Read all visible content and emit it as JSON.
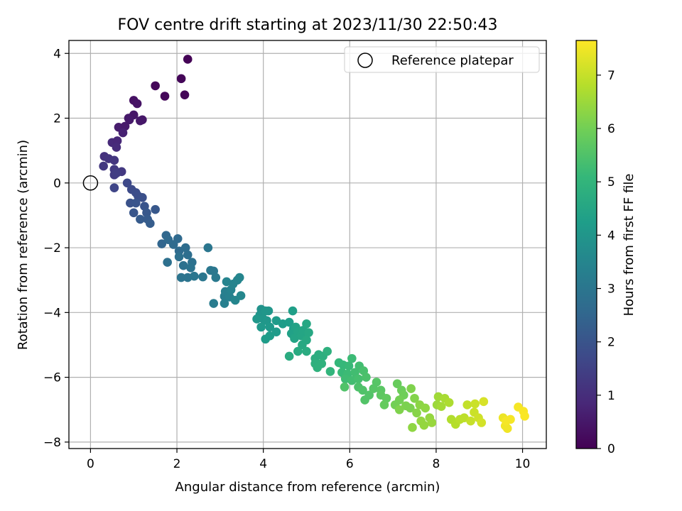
{
  "chart_data": {
    "type": "scatter",
    "title": "FOV centre drift starting at 2023/11/30 22:50:43",
    "xlabel": "Angular distance from reference (arcmin)",
    "ylabel": "Rotation from reference (arcmin)",
    "xlim": [
      -0.5,
      10.55
    ],
    "ylim": [
      -8.2,
      4.4
    ],
    "xticks": [
      0,
      2,
      4,
      6,
      8,
      10
    ],
    "yticks": [
      -8,
      -6,
      -4,
      -2,
      0,
      2,
      4
    ],
    "xtick_labels": [
      "0",
      "2",
      "4",
      "6",
      "8",
      "10"
    ],
    "ytick_labels": [
      "−8",
      "−6",
      "−4",
      "−2",
      "0",
      "2",
      "4"
    ],
    "grid": true,
    "legend": {
      "position": "top-right",
      "entries": [
        "Reference platepar"
      ]
    },
    "reference_point": {
      "label": "Reference platepar",
      "x": 0,
      "y": 0,
      "marker": "open-circle"
    },
    "colorbar": {
      "label": "Hours from first FF file",
      "min": 0,
      "max": 7.65,
      "ticks": [
        0,
        1,
        2,
        3,
        4,
        5,
        6,
        7
      ],
      "tick_labels": [
        "0",
        "1",
        "2",
        "3",
        "4",
        "5",
        "6",
        "7"
      ],
      "colormap": "viridis"
    },
    "colormap_stops": [
      "#440154",
      "#482878",
      "#3e4989",
      "#31688e",
      "#26828e",
      "#1f9e89",
      "#35b779",
      "#6ece58",
      "#b5de2b",
      "#fde725"
    ],
    "series": [
      {
        "name": "FOV centre drift",
        "points": [
          [
            2.25,
            3.82,
            0.05
          ],
          [
            2.1,
            3.22,
            0.1
          ],
          [
            1.5,
            3.0,
            0.12
          ],
          [
            1.72,
            2.68,
            0.15
          ],
          [
            2.18,
            2.72,
            0.1
          ],
          [
            1.0,
            2.55,
            0.35
          ],
          [
            1.08,
            2.45,
            0.4
          ],
          [
            0.88,
            2.0,
            0.5
          ],
          [
            1.0,
            2.1,
            0.45
          ],
          [
            1.2,
            1.95,
            0.48
          ],
          [
            0.65,
            1.72,
            0.6
          ],
          [
            0.8,
            1.75,
            0.55
          ],
          [
            0.9,
            1.95,
            0.52
          ],
          [
            1.15,
            1.92,
            0.5
          ],
          [
            0.75,
            1.55,
            0.7
          ],
          [
            0.5,
            1.25,
            0.9
          ],
          [
            0.62,
            1.3,
            0.85
          ],
          [
            0.6,
            1.1,
            0.95
          ],
          [
            0.32,
            0.82,
            1.1
          ],
          [
            0.42,
            0.75,
            1.15
          ],
          [
            0.55,
            0.7,
            1.2
          ],
          [
            0.3,
            0.52,
            1.25
          ],
          [
            0.55,
            0.42,
            1.3
          ],
          [
            0.55,
            0.25,
            1.35
          ],
          [
            0.72,
            0.35,
            1.3
          ],
          [
            0.6,
            0.3,
            1.4
          ],
          [
            0.55,
            -0.15,
            1.6
          ],
          [
            0.85,
            0.0,
            1.7
          ],
          [
            0.95,
            -0.2,
            1.75
          ],
          [
            1.05,
            -0.3,
            1.8
          ],
          [
            1.1,
            -0.4,
            1.85
          ],
          [
            1.2,
            -0.45,
            1.9
          ],
          [
            0.92,
            -0.62,
            1.95
          ],
          [
            1.05,
            -0.62,
            2.0
          ],
          [
            1.25,
            -0.72,
            2.0
          ],
          [
            1.0,
            -0.92,
            2.05
          ],
          [
            1.3,
            -0.92,
            2.1
          ],
          [
            1.5,
            -0.82,
            2.1
          ],
          [
            1.15,
            -1.12,
            2.2
          ],
          [
            1.32,
            -1.12,
            2.2
          ],
          [
            1.38,
            -1.25,
            2.25
          ],
          [
            1.65,
            -1.88,
            2.5
          ],
          [
            1.75,
            -1.62,
            2.55
          ],
          [
            1.8,
            -1.75,
            2.6
          ],
          [
            2.02,
            -1.72,
            2.6
          ],
          [
            1.92,
            -1.9,
            2.65
          ],
          [
            2.05,
            -2.1,
            2.65
          ],
          [
            2.2,
            -2.0,
            2.7
          ],
          [
            2.25,
            -2.22,
            2.75
          ],
          [
            2.05,
            -2.28,
            2.8
          ],
          [
            1.78,
            -2.45,
            2.8
          ],
          [
            2.15,
            -2.55,
            2.85
          ],
          [
            2.35,
            -2.45,
            2.85
          ],
          [
            2.32,
            -2.62,
            2.9
          ],
          [
            2.1,
            -2.92,
            2.95
          ],
          [
            2.25,
            -2.92,
            2.95
          ],
          [
            2.4,
            -2.88,
            3.0
          ],
          [
            2.6,
            -2.9,
            3.0
          ],
          [
            2.72,
            -2.0,
            3.0
          ],
          [
            2.78,
            -2.7,
            3.05
          ],
          [
            2.85,
            -2.72,
            3.05
          ],
          [
            2.9,
            -2.92,
            3.1
          ],
          [
            2.85,
            -3.72,
            3.2
          ],
          [
            3.1,
            -3.5,
            3.25
          ],
          [
            3.12,
            -3.35,
            3.3
          ],
          [
            3.1,
            -3.72,
            3.3
          ],
          [
            3.22,
            -3.52,
            3.35
          ],
          [
            3.25,
            -3.3,
            3.4
          ],
          [
            3.3,
            -3.12,
            3.45
          ],
          [
            3.4,
            -3.0,
            3.45
          ],
          [
            3.45,
            -2.92,
            3.5
          ],
          [
            3.35,
            -3.62,
            3.5
          ],
          [
            3.48,
            -3.48,
            3.55
          ],
          [
            3.15,
            -3.05,
            3.45
          ],
          [
            3.95,
            -3.9,
            3.9
          ],
          [
            3.92,
            -4.08,
            3.95
          ],
          [
            4.05,
            -3.95,
            4.0
          ],
          [
            4.12,
            -3.95,
            4.0
          ],
          [
            4.0,
            -4.2,
            4.0
          ],
          [
            3.85,
            -4.2,
            4.05
          ],
          [
            4.08,
            -4.25,
            4.05
          ],
          [
            3.95,
            -4.45,
            4.1
          ],
          [
            4.15,
            -4.45,
            4.1
          ],
          [
            4.3,
            -4.6,
            4.15
          ],
          [
            4.05,
            -4.82,
            4.2
          ],
          [
            4.15,
            -4.72,
            4.2
          ],
          [
            4.3,
            -4.25,
            4.15
          ],
          [
            4.45,
            -4.35,
            4.2
          ],
          [
            4.6,
            -4.3,
            4.25
          ],
          [
            4.68,
            -3.95,
            4.3
          ],
          [
            4.7,
            -4.5,
            4.3
          ],
          [
            4.65,
            -4.65,
            4.35
          ],
          [
            4.75,
            -4.45,
            4.4
          ],
          [
            4.8,
            -4.6,
            4.45
          ],
          [
            4.72,
            -4.8,
            4.45
          ],
          [
            4.88,
            -4.72,
            4.5
          ],
          [
            4.92,
            -4.55,
            4.5
          ],
          [
            5.0,
            -4.35,
            4.55
          ],
          [
            5.05,
            -4.62,
            4.55
          ],
          [
            5.0,
            -4.85,
            4.6
          ],
          [
            4.9,
            -5.0,
            4.6
          ],
          [
            4.8,
            -5.2,
            4.65
          ],
          [
            4.6,
            -5.35,
            4.7
          ],
          [
            5.0,
            -5.2,
            4.7
          ],
          [
            5.2,
            -5.42,
            4.75
          ],
          [
            5.28,
            -5.3,
            4.75
          ],
          [
            5.38,
            -5.35,
            4.8
          ],
          [
            5.48,
            -5.2,
            4.85
          ],
          [
            5.2,
            -5.58,
            4.85
          ],
          [
            5.35,
            -5.58,
            4.9
          ],
          [
            5.25,
            -5.7,
            4.9
          ],
          [
            5.55,
            -5.82,
            5.0
          ],
          [
            5.75,
            -5.55,
            5.05
          ],
          [
            5.85,
            -5.62,
            5.1
          ],
          [
            5.82,
            -5.85,
            5.15
          ],
          [
            5.98,
            -5.65,
            5.15
          ],
          [
            6.05,
            -5.42,
            5.2
          ],
          [
            5.95,
            -5.9,
            5.2
          ],
          [
            5.9,
            -6.05,
            5.25
          ],
          [
            6.12,
            -5.85,
            5.3
          ],
          [
            6.05,
            -6.1,
            5.3
          ],
          [
            6.2,
            -6.05,
            5.35
          ],
          [
            6.22,
            -5.65,
            5.3
          ],
          [
            6.32,
            -5.8,
            5.4
          ],
          [
            6.2,
            -6.3,
            5.45
          ],
          [
            6.38,
            -6.0,
            5.45
          ],
          [
            6.3,
            -6.4,
            5.5
          ],
          [
            6.45,
            -6.55,
            5.55
          ],
          [
            6.35,
            -6.7,
            5.55
          ],
          [
            5.88,
            -6.3,
            5.5
          ],
          [
            6.55,
            -6.35,
            5.6
          ],
          [
            6.62,
            -6.15,
            5.6
          ],
          [
            6.72,
            -6.4,
            5.65
          ],
          [
            6.72,
            -6.55,
            5.7
          ],
          [
            6.85,
            -6.65,
            5.75
          ],
          [
            6.8,
            -6.85,
            5.8
          ],
          [
            7.1,
            -6.2,
            5.85
          ],
          [
            7.2,
            -6.4,
            5.9
          ],
          [
            7.25,
            -6.55,
            5.95
          ],
          [
            7.15,
            -6.7,
            6.0
          ],
          [
            7.05,
            -6.85,
            6.0
          ],
          [
            7.3,
            -6.88,
            6.1
          ],
          [
            7.4,
            -6.95,
            6.1
          ],
          [
            7.15,
            -7.0,
            6.15
          ],
          [
            7.5,
            -6.65,
            6.2
          ],
          [
            7.42,
            -6.35,
            6.15
          ],
          [
            7.55,
            -7.1,
            6.25
          ],
          [
            7.62,
            -6.85,
            6.3
          ],
          [
            7.75,
            -6.95,
            6.35
          ],
          [
            7.85,
            -7.25,
            6.4
          ],
          [
            7.72,
            -7.48,
            6.4
          ],
          [
            7.45,
            -7.55,
            6.35
          ],
          [
            7.9,
            -7.4,
            6.45
          ],
          [
            7.65,
            -7.35,
            6.4
          ],
          [
            8.02,
            -6.85,
            6.5
          ],
          [
            8.05,
            -6.6,
            6.55
          ],
          [
            8.12,
            -6.9,
            6.6
          ],
          [
            8.2,
            -6.65,
            6.65
          ],
          [
            8.3,
            -6.78,
            6.7
          ],
          [
            8.35,
            -7.3,
            6.75
          ],
          [
            8.45,
            -7.45,
            6.8
          ],
          [
            8.55,
            -7.3,
            6.85
          ],
          [
            8.65,
            -7.25,
            6.9
          ],
          [
            8.72,
            -6.85,
            6.95
          ],
          [
            8.8,
            -7.35,
            7.0
          ],
          [
            8.88,
            -7.08,
            7.05
          ],
          [
            8.9,
            -6.82,
            7.05
          ],
          [
            8.98,
            -7.25,
            7.1
          ],
          [
            9.05,
            -7.4,
            7.15
          ],
          [
            9.1,
            -6.75,
            7.2
          ],
          [
            9.55,
            -7.25,
            7.45
          ],
          [
            9.6,
            -7.5,
            7.5
          ],
          [
            9.65,
            -7.58,
            7.5
          ],
          [
            9.72,
            -7.3,
            7.55
          ],
          [
            9.9,
            -6.92,
            7.55
          ],
          [
            10.02,
            -7.05,
            7.6
          ],
          [
            10.05,
            -7.2,
            7.62
          ],
          [
            9.62,
            -7.35,
            7.55
          ]
        ]
      }
    ]
  }
}
